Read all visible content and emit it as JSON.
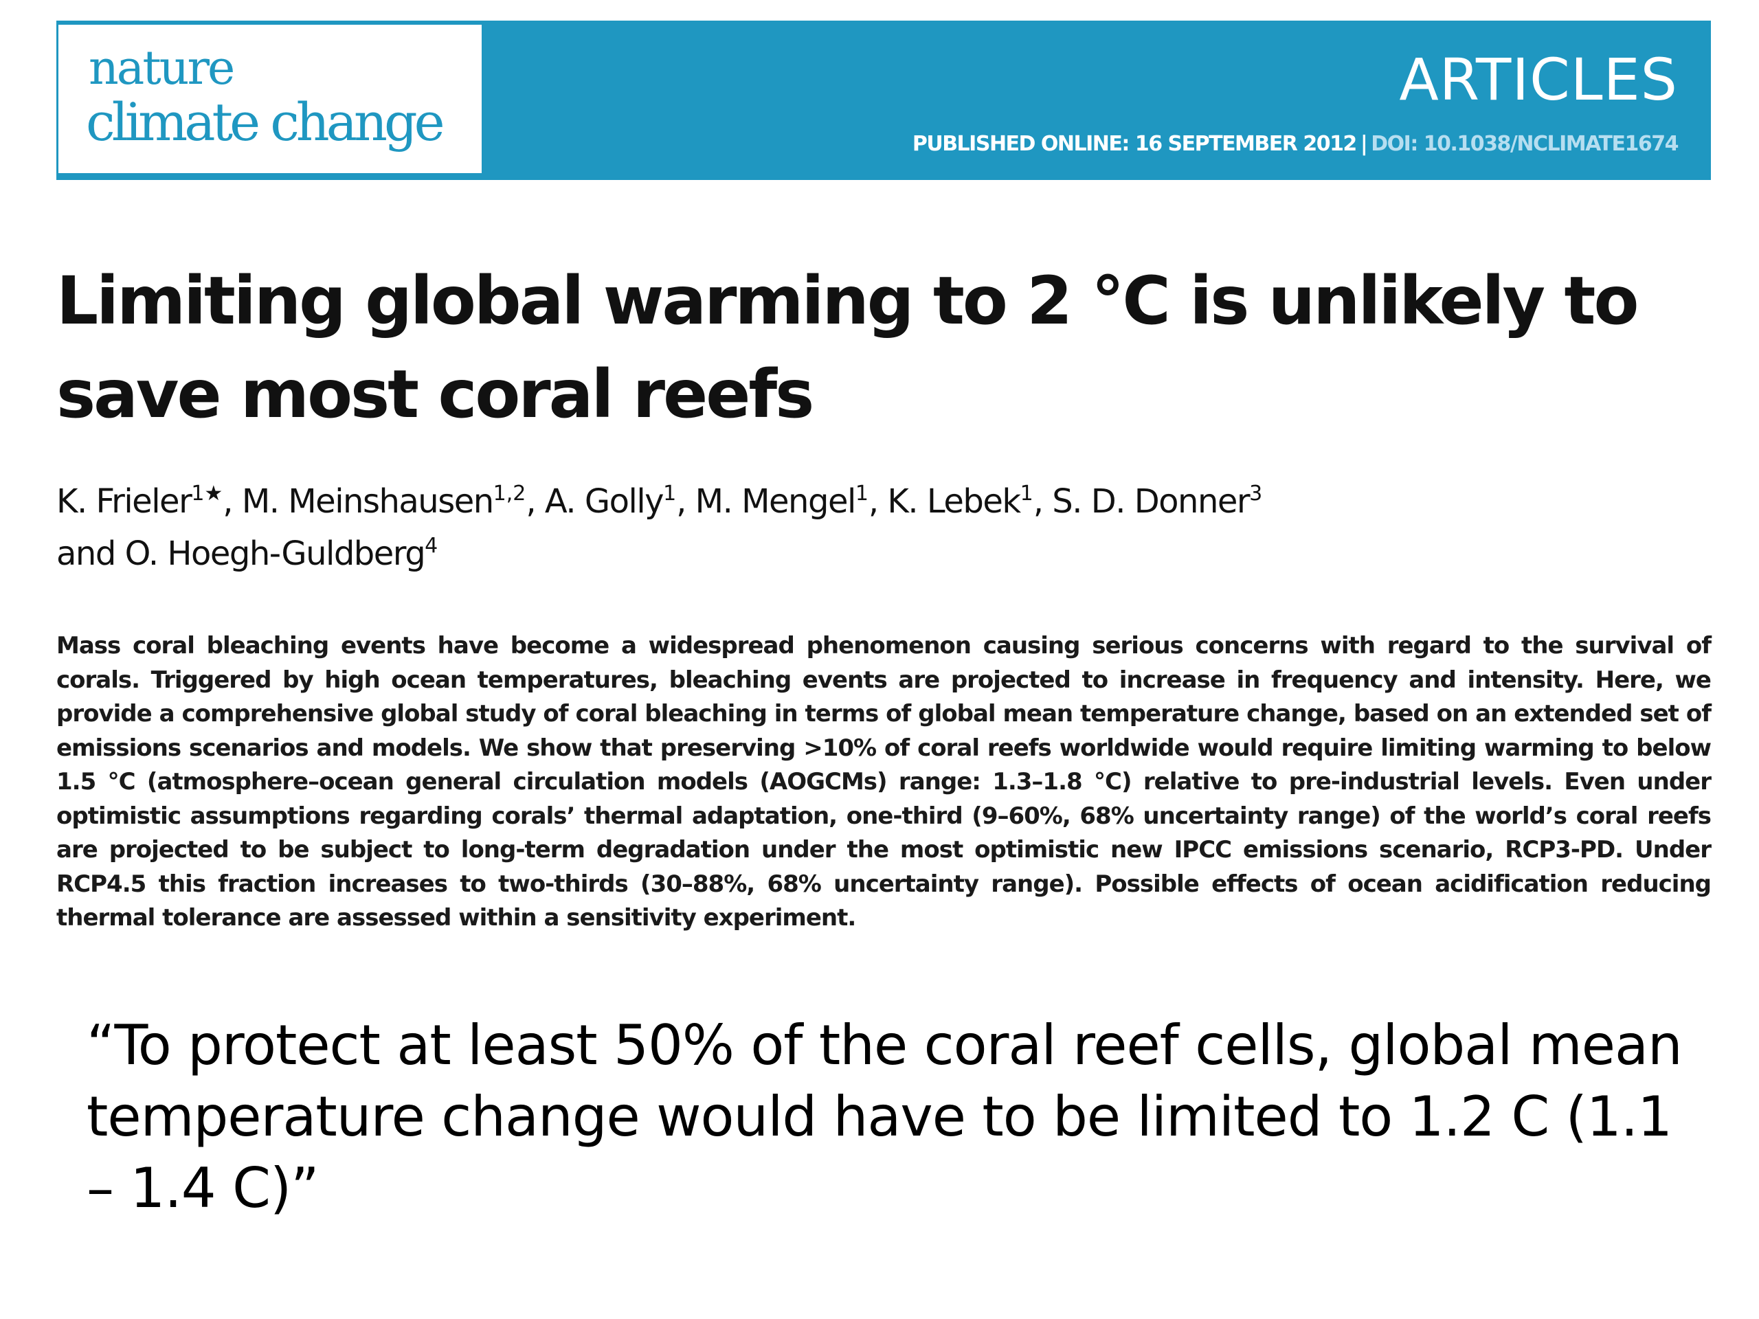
{
  "header": {
    "logo_line1": "nature",
    "logo_line2": "climate change",
    "section": "ARTICLES",
    "published": "PUBLISHED ONLINE: 16 SEPTEMBER 2012",
    "separator": "|",
    "doi": "DOI: 10.1038/NCLIMATE1674"
  },
  "article": {
    "title": "Limiting global warming to 2 °C is unlikely to save most coral reefs",
    "authors": [
      {
        "name": "K. Frieler",
        "sup": "1★",
        "sep": ", "
      },
      {
        "name": "M. Meinshausen",
        "sup": "1,2",
        "sep": ", "
      },
      {
        "name": "A. Golly",
        "sup": "1",
        "sep": ", "
      },
      {
        "name": "M. Mengel",
        "sup": "1",
        "sep": ", "
      },
      {
        "name": "K. Lebek",
        "sup": "1",
        "sep": ", "
      },
      {
        "name": "S. D. Donner",
        "sup": "3",
        "sep": " and "
      },
      {
        "name": "O. Hoegh-Guldberg",
        "sup": "4",
        "sep": ""
      }
    ],
    "abstract": "Mass coral bleaching events have become a widespread phenomenon causing serious concerns with regard to the survival of corals. Triggered by high ocean temperatures, bleaching events are projected to increase in frequency and intensity. Here, we provide a comprehensive global study of coral bleaching in terms of global mean temperature change, based on an extended set of emissions scenarios and models. We show that preserving >10% of coral reefs worldwide would require limiting warming to below 1.5 °C (atmosphere–ocean general circulation models (AOGCMs) range: 1.3–1.8 °C) relative to pre-industrial levels. Even under optimistic assumptions regarding corals’ thermal adaptation, one-third (9–60%, 68% uncertainty range) of the world’s coral reefs are projected to be subject to long-term degradation under the most optimistic new IPCC emissions scenario, RCP3-PD. Under RCP4.5 this fraction increases to two-thirds (30–88%, 68% uncertainty range). Possible effects of ocean acidification reducing thermal tolerance are assessed within a sensitivity experiment."
  },
  "quote": "“To protect at least 50% of the coral reef cells, global mean temperature change would have to be limited to 1.2 C (1.1 – 1.4 C)”",
  "colors": {
    "banner": "#1f97c1",
    "doi_text": "#b6def0"
  }
}
